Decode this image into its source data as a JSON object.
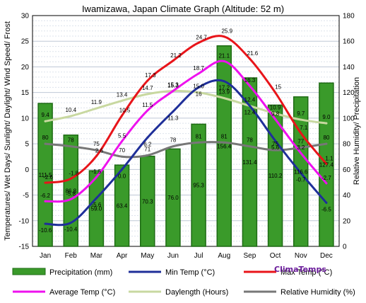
{
  "chart_data": {
    "type": "bar",
    "title": "Iwamizawa, Japan Climate Graph (Altitude: 52 m)",
    "ylabel_left": "Temperatures/ Wet Days/ Sunlight/ Daylight/ Wind Speed/ Frost",
    "ylabel_right": "Relative Humidity/ Precipitation",
    "ylim_left": [
      -15,
      30
    ],
    "ylim_right": [
      0,
      180
    ],
    "yticks_left": [
      "-15",
      "-10",
      "-5",
      "0",
      "5",
      "10",
      "15",
      "20",
      "25",
      "30"
    ],
    "yticks_right": [
      "0",
      "20",
      "40",
      "60",
      "80",
      "100",
      "120",
      "140",
      "160",
      "180"
    ],
    "grid": true,
    "categories": [
      "Jan",
      "Feb",
      "Mar",
      "Apr",
      "May",
      "Jun",
      "Jul",
      "Aug",
      "Sep",
      "Oct",
      "Nov",
      "Dec"
    ],
    "series": [
      {
        "name": "Precipitation (mm)",
        "axis": "right",
        "kind": "bar",
        "color": "#3a9a2a",
        "values": [
          111.5,
          86.8,
          59.0,
          63.4,
          70.3,
          76.0,
          95.3,
          156.4,
          131.4,
          110.2,
          116.6,
          127.4
        ],
        "labels": [
          "111.5",
          "86.8",
          "59.0",
          "63.4",
          "70.3",
          "76.0",
          "95.3",
          "156.4",
          "131.4",
          "110.2",
          "116.6",
          "127.4"
        ]
      },
      {
        "name": "Min Temp (°C)",
        "axis": "left",
        "kind": "line",
        "color": "#1f2f99",
        "values": [
          -10.6,
          -10.4,
          -5.6,
          0.0,
          6.2,
          11.3,
          16.0,
          17.2,
          12.4,
          5.6,
          -0.7,
          -6.5
        ],
        "labels": [
          "-10.6",
          "-10.4",
          "-5.6",
          "0.0",
          "6.2",
          "11.3",
          "16",
          "17.2",
          "12.4",
          "5.6",
          "-0.7",
          "-6.5"
        ]
      },
      {
        "name": "Max Temp (°C)",
        "axis": "left",
        "kind": "line",
        "color": "#e8141a",
        "values": [
          -2.6,
          -1.8,
          2.6,
          10.5,
          17.3,
          21.2,
          24.7,
          25.9,
          21.6,
          15.0,
          7.1,
          1.1
        ],
        "labels": [
          "-2.6",
          "-1.8",
          "2.6",
          "10.5",
          "17.3",
          "21.2",
          "24.7",
          "25.9",
          "21.6",
          "15",
          "7.1",
          "1.1"
        ]
      },
      {
        "name": "Average Temp (°C)",
        "axis": "left",
        "kind": "line",
        "color": "#ee11ee",
        "values": [
          -6.2,
          -5.8,
          -1.5,
          5.5,
          11.5,
          15.3,
          18.7,
          21.1,
          16.3,
          9.8,
          3.2,
          -2.7
        ],
        "labels": [
          "-6.2",
          "-5.8",
          "-1.5",
          "5.5",
          "11.5",
          "15.3",
          "18.7",
          "21.1",
          "16.3",
          "9.8",
          "3.2",
          "-2.7"
        ]
      },
      {
        "name": "Daylength (Hours)",
        "axis": "left",
        "kind": "line",
        "color": "#c8d8a0",
        "values": [
          9.4,
          10.4,
          11.9,
          13.4,
          14.7,
          15.3,
          15.0,
          13.9,
          12.4,
          10.9,
          9.7,
          9.0
        ],
        "labels": [
          "9.4",
          "10.4",
          "11.9",
          "13.4",
          "14.7",
          "15.3",
          "15.0",
          "13.9",
          "12.4",
          "10.9",
          "9.7",
          "9.0"
        ]
      },
      {
        "name": "Relative Humidity (%)",
        "axis": "right",
        "kind": "line",
        "color": "#777777",
        "values": [
          80,
          78,
          75,
          70,
          71,
          78,
          81,
          81,
          78,
          75,
          77,
          80
        ],
        "labels": [
          "80",
          "78",
          "75",
          "70",
          "71",
          "78",
          "81",
          "81",
          "78",
          "75",
          "77",
          "80"
        ]
      }
    ]
  },
  "legend": {
    "items": [
      {
        "label": "Precipitation (mm)",
        "color": "#3a9a2a",
        "style": "bar"
      },
      {
        "label": "Min Temp (°C)",
        "color": "#1f2f99",
        "style": "line"
      },
      {
        "label": "Max Temp (°C)",
        "color": "#e8141a",
        "style": "line"
      },
      {
        "label": "Average Temp (°C)",
        "color": "#ee11ee",
        "style": "line"
      },
      {
        "label": "Daylength (Hours)",
        "color": "#c8d8a0",
        "style": "line"
      },
      {
        "label": "Relative Humidity (%)",
        "color": "#777777",
        "style": "line"
      }
    ]
  },
  "brand": "ClimaTemps"
}
